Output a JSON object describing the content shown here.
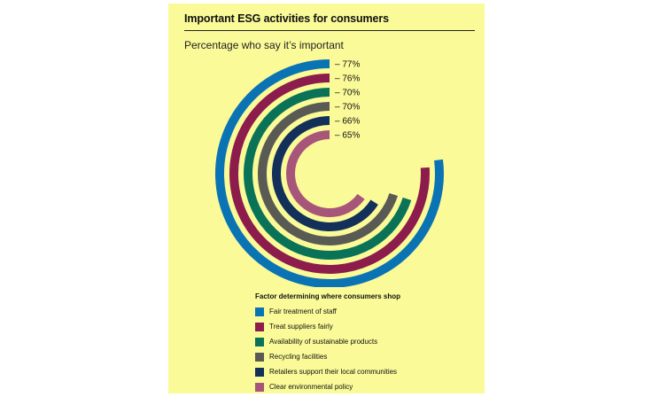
{
  "chart_data": {
    "type": "radial-bar",
    "title": "Important ESG activities for consumers",
    "subtitle": "Percentage who say it’s important",
    "unit": "%",
    "categories": [
      "Fair treatment of staff",
      "Treat suppliers fairly",
      "Availability of sustainable products",
      "Recycling facilities",
      "Retailers support their local communities",
      "Clear environmental policy"
    ],
    "values": [
      77,
      76,
      70,
      70,
      66,
      65
    ],
    "value_labels": [
      "– 77%",
      "– 76%",
      "– 70%",
      "– 70%",
      "– 66%",
      "– 65%"
    ],
    "colors": [
      "#0a73b4",
      "#8c1c4b",
      "#0a7357",
      "#5a5a54",
      "#12305a",
      "#a8557a"
    ],
    "legend": {
      "title": "Factor determining where consumers shop",
      "placement": "bottom"
    }
  },
  "style": {
    "background": "#fafa98"
  }
}
